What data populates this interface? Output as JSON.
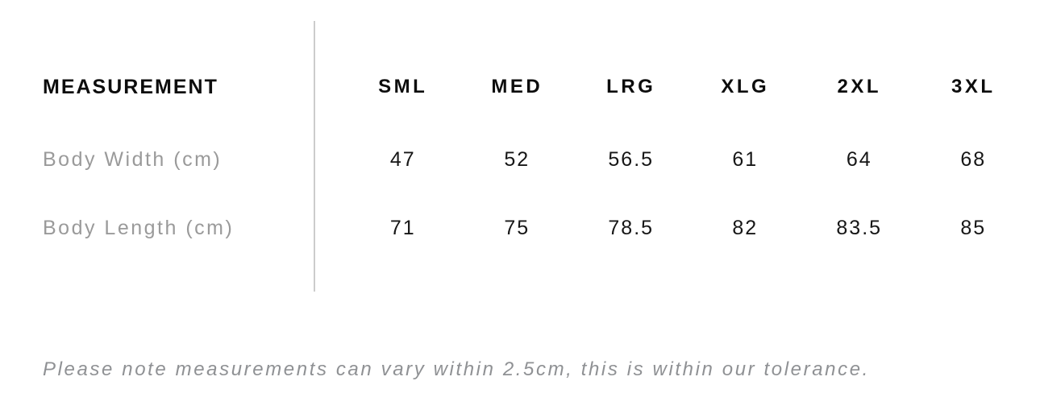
{
  "chart_data": {
    "type": "table",
    "columns": [
      "MEASUREMENT",
      "SML",
      "MED",
      "LRG",
      "XLG",
      "2XL",
      "3XL"
    ],
    "rows": [
      {
        "label": "Body Width (cm)",
        "values": [
          47,
          52,
          56.5,
          61,
          64,
          68
        ]
      },
      {
        "label": "Body Length (cm)",
        "values": [
          71,
          75,
          78.5,
          82,
          83.5,
          85
        ]
      }
    ],
    "note": "Please note measurements can vary within 2.5cm, this is within our tolerance."
  },
  "size_chart": {
    "header": {
      "measurement_label": "MEASUREMENT",
      "sizes": [
        "SML",
        "MED",
        "LRG",
        "XLG",
        "2XL",
        "3XL"
      ]
    },
    "rows": [
      {
        "label": "Body Width (cm)",
        "values": [
          "47",
          "52",
          "56.5",
          "61",
          "64",
          "68"
        ]
      },
      {
        "label": "Body Length (cm)",
        "values": [
          "71",
          "75",
          "78.5",
          "82",
          "83.5",
          "85"
        ]
      }
    ],
    "note": "Please note measurements can vary within 2.5cm, this is within our tolerance."
  },
  "colors": {
    "background": "#ffffff",
    "header_text": "#0d0d0d",
    "value_text": "#161616",
    "row_label_text": "#9a9a9a",
    "note_text": "#8f9194",
    "divider": "#cccccc"
  }
}
